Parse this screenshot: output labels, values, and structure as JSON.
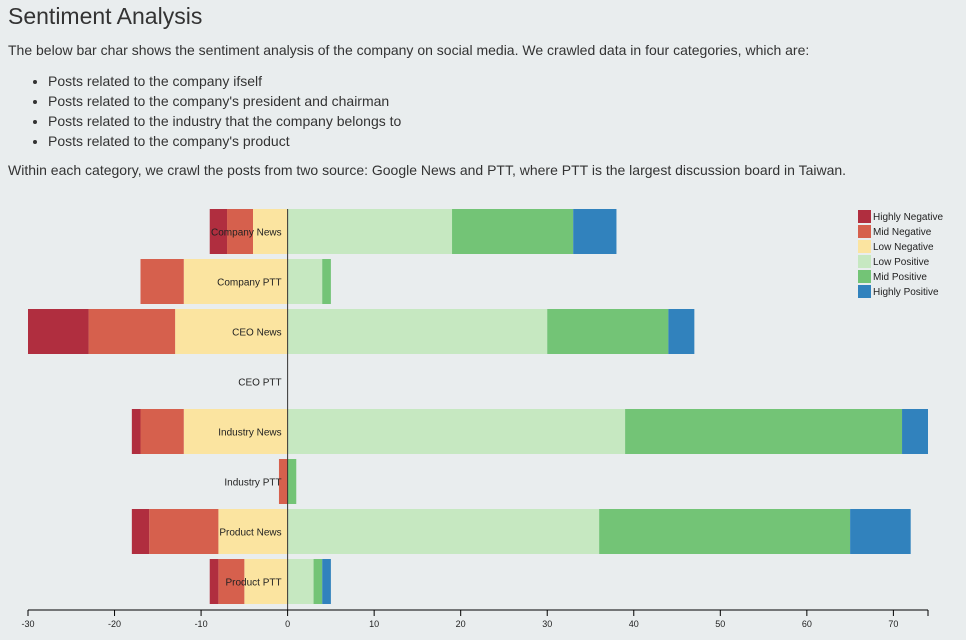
{
  "header": {
    "title": "Sentiment Analysis",
    "intro": "The below bar char shows the sentiment analysis of the company on social media. We crawled data in four categories, which are:",
    "bullets": [
      "Posts related to the company ifself",
      "Posts related to the company's president and chairman",
      "Posts related to the industry that the company belongs to",
      "Posts related to the company's product"
    ],
    "outro": "Within each category, we crawl the posts from two source: Google News and PTT, where PTT is the largest discussion board in Taiwan."
  },
  "chart_data": {
    "type": "bar",
    "orientation": "horizontal-diverging",
    "categories": [
      "Company News",
      "Company PTT",
      "CEO News",
      "CEO PTT",
      "Industry News",
      "Industry PTT",
      "Product News",
      "Product PTT"
    ],
    "series": [
      {
        "name": "Highly Negative",
        "color": "#b02e3f",
        "values": [
          2,
          0,
          7,
          0,
          1,
          0,
          2,
          1
        ]
      },
      {
        "name": "Mid Negative",
        "color": "#d6604d",
        "values": [
          3,
          5,
          10,
          0,
          5,
          1,
          8,
          3
        ]
      },
      {
        "name": "Low Negative",
        "color": "#fbe4a0",
        "values": [
          4,
          12,
          13,
          0,
          12,
          0,
          8,
          5
        ]
      },
      {
        "name": "Low Positive",
        "color": "#c6e8c1",
        "values": [
          19,
          4,
          30,
          0,
          39,
          0,
          36,
          3
        ]
      },
      {
        "name": "Mid Positive",
        "color": "#73c476",
        "values": [
          14,
          1,
          14,
          0,
          32,
          1,
          29,
          1
        ]
      },
      {
        "name": "Highly Positive",
        "color": "#3182bd",
        "values": [
          5,
          0,
          3,
          0,
          3,
          0,
          7,
          1
        ]
      }
    ],
    "negative_series": [
      "Highly Negative",
      "Mid Negative",
      "Low Negative"
    ],
    "positive_series": [
      "Low Positive",
      "Mid Positive",
      "Highly Positive"
    ],
    "xlim": [
      -30,
      74
    ],
    "xticks": [
      -30,
      -20,
      -10,
      0,
      10,
      20,
      30,
      40,
      50,
      60,
      70
    ],
    "legend_position": "top-right",
    "grid": false
  }
}
